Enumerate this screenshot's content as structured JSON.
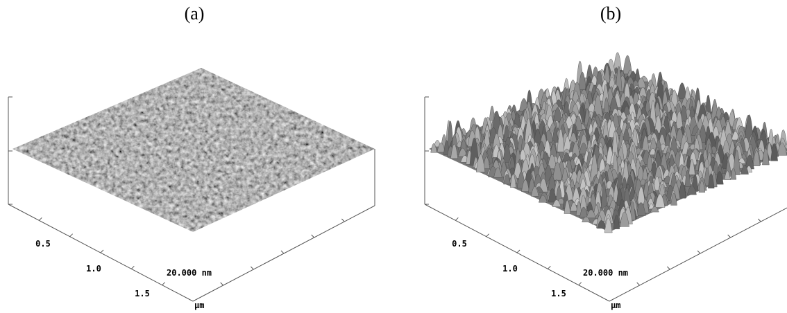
{
  "panels": [
    {
      "label": "(a)",
      "axis_labels": [
        "0.5",
        "1.0",
        "1.5",
        "μm",
        "20.000 nm"
      ]
    },
    {
      "label": "(b)",
      "axis_labels": [
        "0.5",
        "1.0",
        "1.5",
        "μm",
        "20.000 nm"
      ]
    }
  ]
}
